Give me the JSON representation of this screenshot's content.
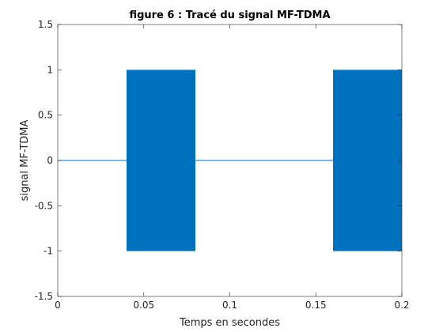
{
  "chart_data": {
    "type": "line",
    "title": "figure 6 : Tracé du signal MF-TDMA",
    "xlabel": "Temps en secondes",
    "ylabel": "signal MF-TDMA",
    "xlim": [
      0,
      0.2
    ],
    "ylim": [
      -1.5,
      1.5
    ],
    "xticks": [
      0,
      0.05,
      0.1,
      0.15,
      0.2
    ],
    "xtick_labels": [
      "0",
      "0.05",
      "0.1",
      "0.15",
      "0.2"
    ],
    "yticks": [
      -1.5,
      -1,
      -0.5,
      0,
      0.5,
      1,
      1.5
    ],
    "ytick_labels": [
      "-1.5",
      "-1",
      "-0.5",
      "0",
      "0.5",
      "1",
      "1.5"
    ],
    "grid": false,
    "series": [
      {
        "color": "#0072BD",
        "segments": [
          {
            "x_start": 0.0,
            "x_end": 0.04,
            "kind": "flat",
            "value": 0
          },
          {
            "x_start": 0.04,
            "x_end": 0.08,
            "kind": "oscillating",
            "min": -1,
            "max": 1
          },
          {
            "x_start": 0.08,
            "x_end": 0.16,
            "kind": "flat",
            "value": 0
          },
          {
            "x_start": 0.16,
            "x_end": 0.2,
            "kind": "oscillating",
            "min": -1,
            "max": 1
          }
        ]
      }
    ]
  }
}
